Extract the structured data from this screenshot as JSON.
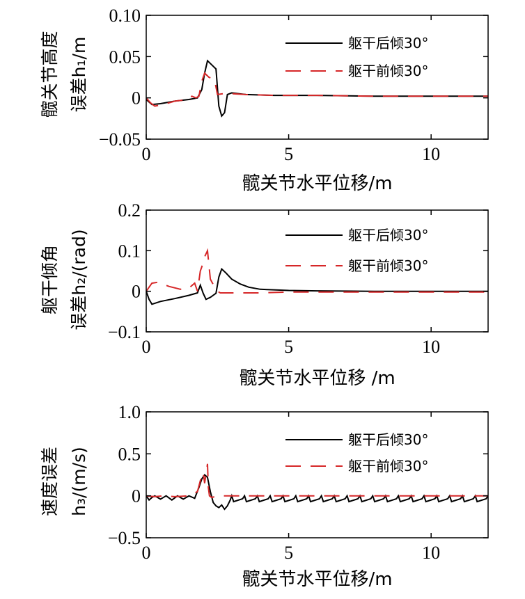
{
  "chart_data": [
    {
      "type": "line",
      "xlabel": "髋关节水平位移/m",
      "ylabel_line1": "髋关节高度",
      "ylabel_line2": "误差h₁/m",
      "xlim": [
        0,
        12
      ],
      "ylim": [
        -0.05,
        0.1
      ],
      "xticks": [
        0,
        5,
        10
      ],
      "xtick_labels": [
        "0",
        "5",
        "10"
      ],
      "yticks": [
        -0.05,
        0,
        0.05,
        0.1
      ],
      "ytick_labels": [
        "−0.05",
        "0",
        "0.05",
        "0.10"
      ],
      "legend_position": "top-right",
      "series": [
        {
          "name": "躯干后倾30°",
          "color": "#000000",
          "dash": "solid",
          "x": [
            0,
            0.2,
            0.5,
            1.0,
            1.5,
            1.8,
            1.95,
            2.05,
            2.15,
            2.3,
            2.45,
            2.55,
            2.65,
            2.75,
            2.85,
            3.0,
            3.5,
            4.5,
            6,
            8,
            10,
            12
          ],
          "y": [
            -0.002,
            -0.008,
            -0.007,
            -0.004,
            -0.002,
            0.0,
            0.01,
            0.03,
            0.045,
            0.04,
            0.035,
            -0.01,
            -0.022,
            -0.018,
            0.004,
            0.006,
            0.004,
            0.003,
            0.003,
            0.002,
            0.002,
            0.002
          ]
        },
        {
          "name": "躯干前倾30°",
          "color": "#d62728",
          "dash": "long",
          "x": [
            0,
            0.15,
            0.3,
            0.6,
            1.0,
            1.5,
            1.6,
            1.75,
            1.85,
            1.95,
            2.05,
            2.2,
            2.4,
            2.5,
            2.7,
            3.0,
            3.5,
            4.5,
            6,
            8,
            10,
            12
          ],
          "y": [
            0,
            -0.006,
            -0.01,
            -0.008,
            -0.004,
            -0.002,
            0.002,
            0.0,
            0.002,
            0.02,
            0.03,
            0.025,
            0.022,
            0.004,
            0.005,
            0.005,
            0.004,
            0.003,
            0.003,
            0.002,
            0.002,
            0.002
          ]
        }
      ]
    },
    {
      "type": "line",
      "xlabel": "髋关节水平位移 /m",
      "ylabel_line1": "躯干倾角",
      "ylabel_line2": "误差h₂/(rad)",
      "xlim": [
        0,
        12
      ],
      "ylim": [
        -0.1,
        0.2
      ],
      "xticks": [
        0,
        5,
        10
      ],
      "xtick_labels": [
        "0",
        "5",
        "10"
      ],
      "yticks": [
        -0.1,
        0,
        0.1,
        0.2
      ],
      "ytick_labels": [
        "−0.1",
        "0",
        "0.1",
        "0.2"
      ],
      "legend_position": "top-right",
      "series": [
        {
          "name": "躯干后倾30°",
          "color": "#000000",
          "dash": "solid",
          "x": [
            0,
            0.1,
            0.2,
            0.5,
            1.0,
            1.5,
            1.8,
            1.9,
            2.0,
            2.1,
            2.25,
            2.45,
            2.55,
            2.65,
            2.8,
            3.0,
            3.3,
            3.6,
            4.0,
            5,
            6,
            8,
            10,
            12
          ],
          "y": [
            0,
            -0.02,
            -0.032,
            -0.025,
            -0.018,
            -0.01,
            -0.004,
            0.015,
            -0.005,
            -0.02,
            -0.015,
            -0.005,
            0.035,
            0.055,
            0.045,
            0.03,
            0.018,
            0.01,
            0.005,
            0.002,
            0.001,
            0.0,
            0.0,
            0.0
          ]
        },
        {
          "name": "躯干前倾30°",
          "color": "#d62728",
          "dash": "long",
          "x": [
            0,
            0.1,
            0.2,
            0.4,
            0.8,
            1.2,
            1.5,
            1.7,
            1.8,
            1.9,
            1.95,
            2.05,
            2.15,
            2.25,
            2.4,
            2.5,
            2.6,
            3.0,
            4.0,
            5,
            8,
            12
          ],
          "y": [
            0,
            0.01,
            0.02,
            0.022,
            0.012,
            0.005,
            0.008,
            0.02,
            0.0,
            0.05,
            0.06,
            0.085,
            0.1,
            0.03,
            0.01,
            0.0,
            -0.004,
            -0.004,
            -0.004,
            -0.002,
            -0.002,
            -0.002
          ]
        }
      ]
    },
    {
      "type": "line",
      "xlabel": "髋关节水平位移/m",
      "ylabel_line1": "速度误差",
      "ylabel_line2": "h₃/(m/s)",
      "xlim": [
        0,
        12
      ],
      "ylim": [
        -0.5,
        1.0
      ],
      "xticks": [
        0,
        5,
        10
      ],
      "xtick_labels": [
        "0",
        "5",
        "10"
      ],
      "yticks": [
        -0.5,
        0,
        0.5,
        1.0
      ],
      "ytick_labels": [
        "−0.5",
        "0",
        "0.5",
        "1.0"
      ],
      "legend_position": "top-right",
      "series": [
        {
          "name": "躯干后倾30°",
          "color": "#000000",
          "dash": "solid",
          "sawtooth": {
            "from": 3.0,
            "to": 12.0,
            "period": 0.45,
            "low": -0.07,
            "high": 0.0
          },
          "x": [
            0,
            0.1,
            0.2,
            0.3,
            0.5,
            0.7,
            0.9,
            1.1,
            1.3,
            1.5,
            1.7,
            1.85,
            1.95,
            2.05,
            2.15,
            2.25,
            2.35,
            2.45,
            2.55,
            2.65,
            2.75,
            2.85,
            2.95,
            3.0
          ],
          "y": [
            0.0,
            -0.05,
            -0.02,
            0.0,
            -0.04,
            0.0,
            -0.05,
            0.0,
            -0.04,
            0.0,
            -0.03,
            0.1,
            0.2,
            0.25,
            0.22,
            0.05,
            -0.08,
            -0.12,
            -0.14,
            -0.11,
            -0.16,
            -0.12,
            -0.05,
            0.0
          ]
        },
        {
          "name": "躯干前倾30°",
          "color": "#d62728",
          "dash": "long",
          "x": [
            0,
            0.3,
            0.6,
            1.0,
            1.5,
            1.8,
            1.9,
            2.0,
            2.05,
            2.15,
            2.18,
            2.22,
            2.3,
            2.5,
            3.0,
            4.0,
            6.0,
            8.0,
            10.0,
            12.0
          ],
          "y": [
            0.0,
            -0.01,
            0.0,
            -0.01,
            0.0,
            0.05,
            0.18,
            0.28,
            0.15,
            0.38,
            0.1,
            0.0,
            -0.02,
            0.0,
            0.0,
            0.0,
            0.0,
            0.0,
            0.0,
            0.0
          ]
        }
      ]
    }
  ]
}
